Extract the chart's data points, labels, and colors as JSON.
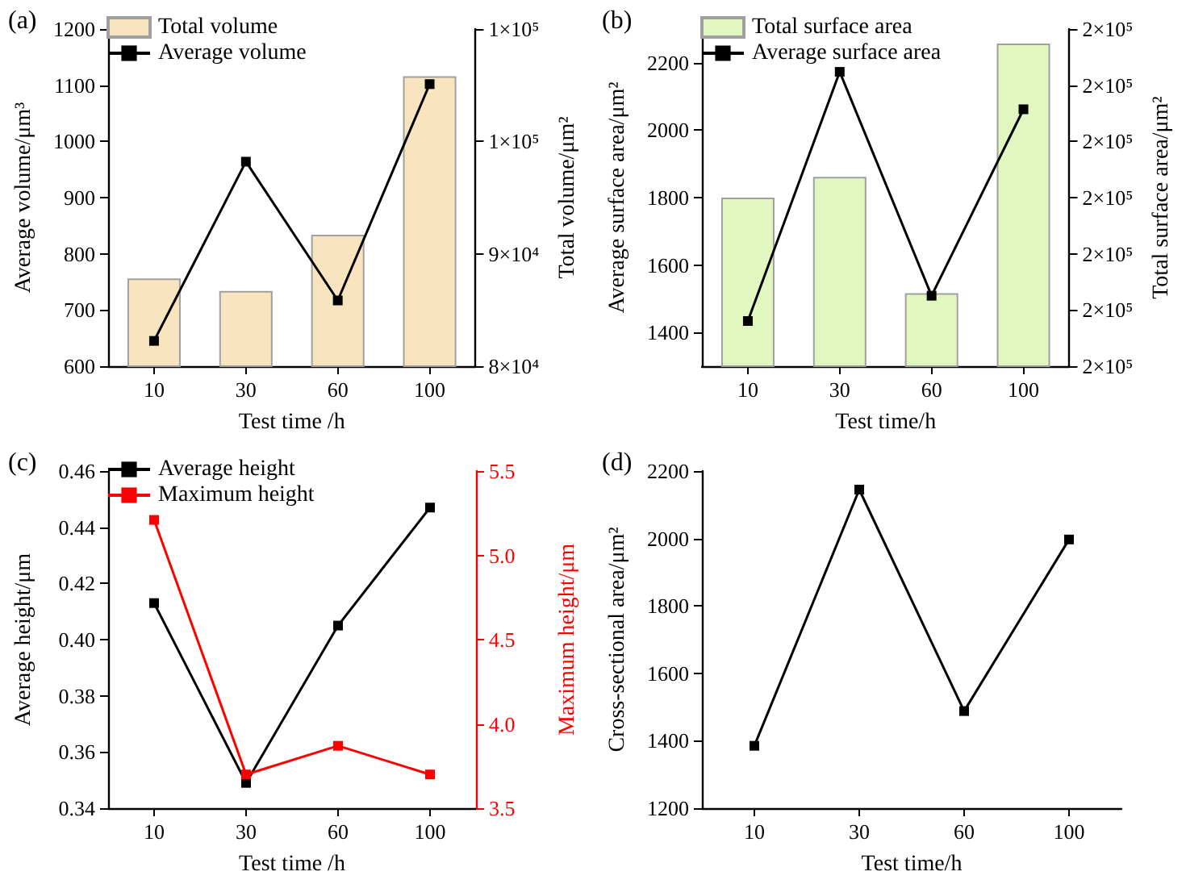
{
  "chart_data": [
    {
      "type": "bar",
      "title": "(a)",
      "xlabel": "Test time /h",
      "ylabel": "Average volume/μm³",
      "y2label": "Total volume/μm²",
      "categories": [
        "10",
        "30",
        "60",
        "100"
      ],
      "legend": "top left",
      "marker": "square",
      "ylim": [
        600,
        1200
      ],
      "yticks": [
        600,
        700,
        800,
        900,
        1000,
        1100,
        1200
      ],
      "y2lim": [
        80000,
        110000
      ],
      "y2ticks": [
        {
          "value": 80000,
          "label": "8×10⁴"
        },
        {
          "value": 90000,
          "label": "9×10⁴"
        },
        {
          "value": 100000,
          "label": "1×10⁵"
        },
        {
          "value": 110000,
          "label": "1×10⁵"
        }
      ],
      "series": [
        {
          "name": "Total volume",
          "type": "bar",
          "axis": "y2",
          "color": "#f8e4bf",
          "values": [
            87800,
            86700,
            91700,
            105800
          ]
        },
        {
          "name": "Average volume",
          "type": "line",
          "color": "#000000",
          "values": [
            645,
            964,
            717,
            1102
          ]
        }
      ]
    },
    {
      "type": "bar",
      "title": "(b)",
      "xlabel": "Test time/h",
      "ylabel": "Average surface area/μm²",
      "y2label": "Total surface area/μm²",
      "categories": [
        "10",
        "30",
        "60",
        "100"
      ],
      "legend": "top left",
      "marker": "square",
      "ylim": [
        1300,
        2300
      ],
      "yticks": [
        1400,
        1600,
        1800,
        2000,
        2200
      ],
      "y2lim": [
        170000,
        230000
      ],
      "y2ticks": [
        {
          "value": 170000,
          "label": "2×10⁵"
        },
        {
          "value": 180000,
          "label": "2×10⁵"
        },
        {
          "value": 190000,
          "label": "2×10⁵"
        },
        {
          "value": 200000,
          "label": "2×10⁵"
        },
        {
          "value": 210000,
          "label": "2×10⁵"
        },
        {
          "value": 220000,
          "label": "2×10⁵"
        },
        {
          "value": 230000,
          "label": "2×10⁵"
        }
      ],
      "series": [
        {
          "name": "Total surface area",
          "type": "bar",
          "axis": "y2",
          "color": "#e2f7c0",
          "values": [
            200000,
            203700,
            183000,
            227400
          ]
        },
        {
          "name": "Average surface area",
          "type": "line",
          "color": "#000000",
          "values": [
            1434,
            2173,
            1509,
            2062
          ]
        }
      ]
    },
    {
      "type": "line",
      "title": "(c)",
      "xlabel": "Test time /h",
      "ylabel": "Average height/μm",
      "y2label": "Maximum height/μm",
      "categories": [
        "10",
        "30",
        "60",
        "100"
      ],
      "legend": "top left",
      "marker": "square",
      "ylim": [
        0.34,
        0.46
      ],
      "yticks": [
        {
          "value": 0.34,
          "label": "0.34"
        },
        {
          "value": 0.36,
          "label": "0.36"
        },
        {
          "value": 0.38,
          "label": "0.38"
        },
        {
          "value": 0.4,
          "label": "0.40"
        },
        {
          "value": 0.42,
          "label": "0.42"
        },
        {
          "value": 0.44,
          "label": "0.44"
        },
        {
          "value": 0.46,
          "label": "0.46"
        }
      ],
      "y2lim": [
        3.5,
        5.5
      ],
      "y2ticks": [
        3.5,
        {
          "value": 4,
          "label": "4.0"
        },
        4.5,
        {
          "value": 5,
          "label": "5.0"
        },
        5.5
      ],
      "series": [
        {
          "name": "Average height",
          "color": "#000000",
          "values": [
            0.413,
            0.349,
            0.405,
            0.447
          ]
        },
        {
          "name": "Maximum height",
          "axis": "y2",
          "color": "#ff0000",
          "values": [
            5.21,
            3.7,
            3.87,
            3.7
          ]
        }
      ]
    },
    {
      "type": "line",
      "title": "(d)",
      "xlabel": "Test time/h",
      "ylabel": "Cross-sectional area/μm²",
      "categories": [
        "10",
        "30",
        "60",
        "100"
      ],
      "marker": "square",
      "ylim": [
        1200,
        2200
      ],
      "yticks": [
        1200,
        1400,
        1600,
        1800,
        2000,
        2200
      ],
      "series": [
        {
          "color": "#000000",
          "values": [
            1385,
            2145,
            1488,
            1997
          ]
        }
      ]
    }
  ]
}
